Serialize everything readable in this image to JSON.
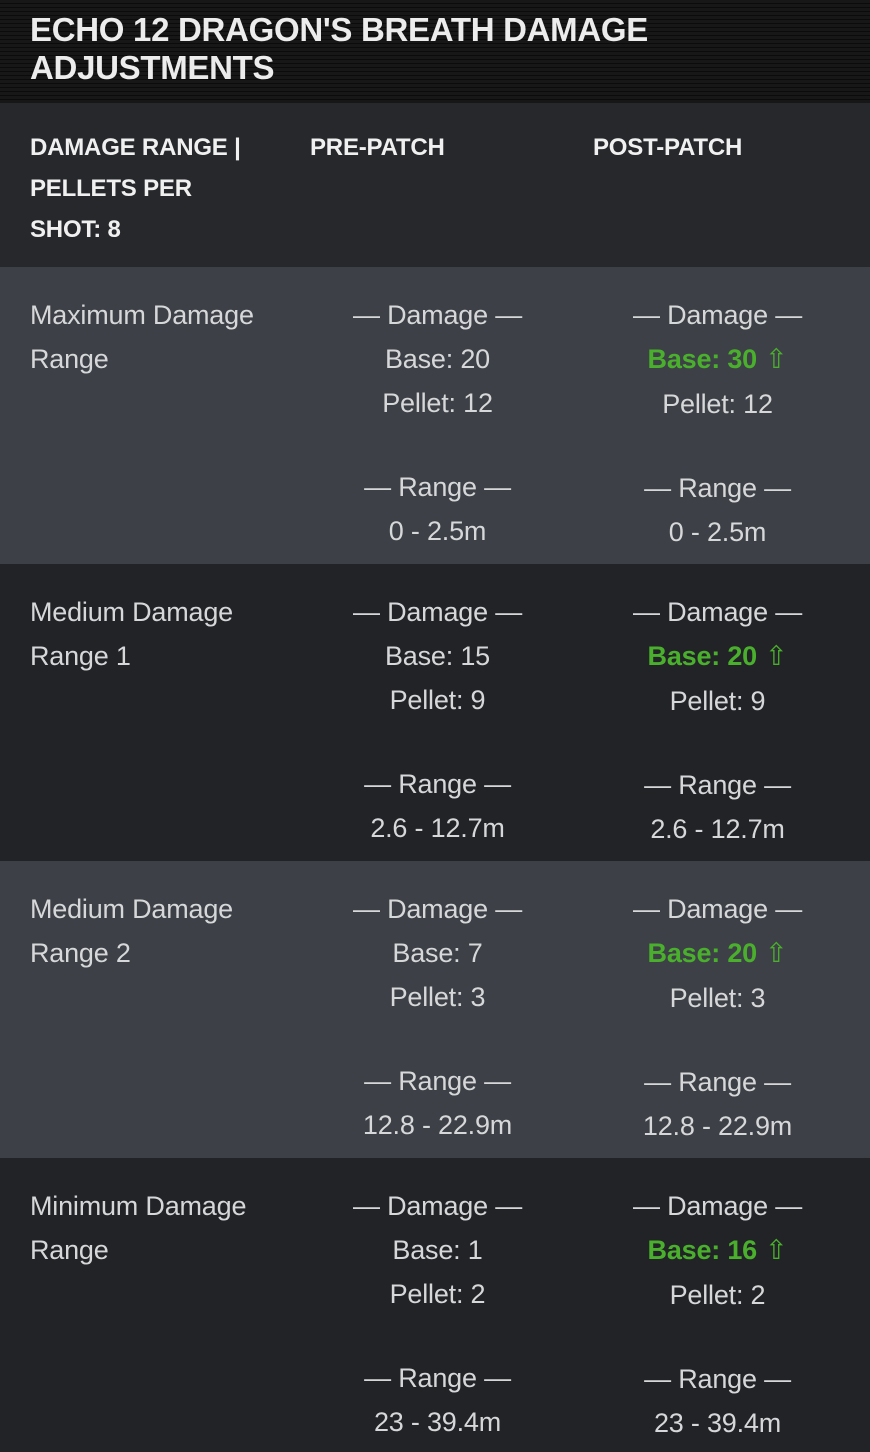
{
  "title": "ECHO 12 DRAGON'S BREATH DAMAGE ADJUSTMENTS",
  "colors": {
    "buff_green": "#4aaf2d",
    "row_light_bg": "#3d4046",
    "row_dark_bg": "#222327",
    "header_bg": "#26282c",
    "title_bg": "#0e0e0e",
    "text_light": "#d6d7d8"
  },
  "icons": {
    "buff_up_arrow": "⇧"
  },
  "labels": {
    "damage_heading": "— Damage —",
    "range_heading": "— Range —"
  },
  "table": {
    "headers": [
      "DAMAGE RANGE | PELLETS PER SHOT: 8",
      "PRE-PATCH",
      "POST-PATCH"
    ],
    "rows": [
      {
        "label": "Maximum Damage Range",
        "pre": {
          "base": "Base: 20",
          "pellet": "Pellet: 12",
          "range": "0 - 2.5m"
        },
        "post": {
          "base": "Base: 30",
          "pellet": "Pellet: 12",
          "range": "0 - 2.5m",
          "base_changed": "buff"
        }
      },
      {
        "label": "Medium Damage Range 1",
        "pre": {
          "base": "Base: 15",
          "pellet": "Pellet: 9",
          "range": "2.6 - 12.7m"
        },
        "post": {
          "base": "Base: 20",
          "pellet": "Pellet: 9",
          "range": "2.6 - 12.7m",
          "base_changed": "buff"
        }
      },
      {
        "label": "Medium Damage Range 2",
        "pre": {
          "base": "Base: 7",
          "pellet": "Pellet: 3",
          "range": "12.8 - 22.9m"
        },
        "post": {
          "base": "Base: 20",
          "pellet": "Pellet: 3",
          "range": "12.8 - 22.9m",
          "base_changed": "buff"
        }
      },
      {
        "label": "Minimum Damage Range",
        "pre": {
          "base": "Base: 1",
          "pellet": "Pellet: 2",
          "range": "23 - 39.4m"
        },
        "post": {
          "base": "Base: 16",
          "pellet": "Pellet: 2",
          "range": "23 - 39.4m",
          "base_changed": "buff"
        }
      }
    ]
  }
}
